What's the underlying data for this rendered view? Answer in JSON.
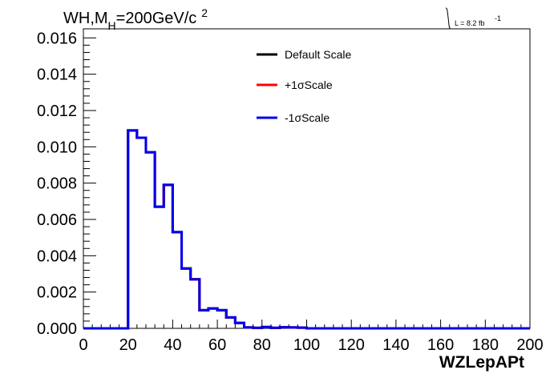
{
  "chart_data": {
    "type": "line",
    "title_parts": {
      "main": "WH,M",
      "sub": "H",
      "rest": "=200GeV/c",
      "sup": "2"
    },
    "luminosity": {
      "label": "L = 8.2 fb",
      "sup": "-1"
    },
    "xlabel": "WZLepAPt",
    "ylabel": "",
    "xlim": [
      0,
      200
    ],
    "ylim": [
      0,
      0.0165
    ],
    "x_ticks": [
      "0",
      "20",
      "40",
      "60",
      "80",
      "100",
      "120",
      "140",
      "160",
      "180",
      "200"
    ],
    "y_ticks": [
      "0.000",
      "0.002",
      "0.004",
      "0.006",
      "0.008",
      "0.010",
      "0.012",
      "0.014",
      "0.016"
    ],
    "grid": false,
    "legend_position": "top-center",
    "bin_edges": [
      0,
      4,
      8,
      12,
      16,
      20,
      24,
      28,
      32,
      36,
      40,
      44,
      48,
      52,
      56,
      60,
      64,
      68,
      72,
      76,
      80,
      84,
      88,
      92,
      96,
      100,
      104,
      108,
      112,
      116,
      120,
      124,
      128,
      132,
      136,
      140,
      144,
      148,
      152,
      156,
      160,
      164,
      168,
      172,
      176,
      180,
      184,
      188,
      192,
      196,
      200
    ],
    "series": [
      {
        "name": "Default Scale",
        "color": "#000000",
        "values": [
          0,
          0,
          0,
          0,
          0,
          0.0109,
          0.0105,
          0.0097,
          0.0067,
          0.0079,
          0.0053,
          0.0033,
          0.0027,
          0.001,
          0.0011,
          0.001,
          0.0006,
          0.0003,
          5e-05,
          3e-05,
          7e-05,
          3e-05,
          6e-05,
          5e-05,
          4e-05,
          0,
          0,
          0,
          0,
          0,
          0,
          0,
          0,
          0,
          0,
          0,
          0,
          0,
          0,
          0,
          0,
          0,
          0,
          0,
          0,
          0,
          0,
          0,
          0,
          0
        ]
      },
      {
        "name": "+1σScale",
        "color": "#ff0000",
        "values": [
          0,
          0,
          0,
          0,
          0,
          0.0109,
          0.0105,
          0.0097,
          0.0067,
          0.0079,
          0.0053,
          0.0033,
          0.0027,
          0.001,
          0.0011,
          0.001,
          0.0006,
          0.0003,
          5e-05,
          3e-05,
          7e-05,
          3e-05,
          6e-05,
          5e-05,
          4e-05,
          0,
          0,
          0,
          0,
          0,
          0,
          0,
          0,
          0,
          0,
          0,
          0,
          0,
          0,
          0,
          0,
          0,
          0,
          0,
          0,
          0,
          0,
          0,
          0,
          0
        ]
      },
      {
        "name": "-1σScale",
        "color": "#0000ee",
        "values": [
          0,
          0,
          0,
          0,
          0,
          0.0109,
          0.0105,
          0.0097,
          0.0067,
          0.0079,
          0.0053,
          0.0033,
          0.0027,
          0.001,
          0.0011,
          0.001,
          0.0006,
          0.0003,
          5e-05,
          3e-05,
          7e-05,
          3e-05,
          6e-05,
          5e-05,
          4e-05,
          0,
          0,
          0,
          0,
          0,
          0,
          0,
          0,
          0,
          0,
          0,
          0,
          0,
          0,
          0,
          0,
          0,
          0,
          0,
          0,
          0,
          0,
          0,
          0,
          0
        ]
      }
    ]
  }
}
